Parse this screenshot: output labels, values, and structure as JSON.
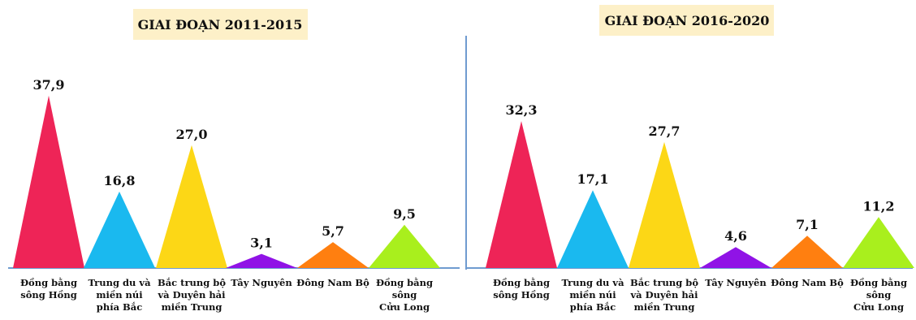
{
  "chart_data": [
    {
      "type": "bar",
      "title": "GIAI ĐOẠN 2011-2015",
      "categories": [
        [
          "Đồng bằng",
          "sông Hồng"
        ],
        [
          "Trung du và",
          "miền núi",
          "phía Bắc"
        ],
        [
          "Bắc trung bộ",
          "và Duyên hải",
          "miền Trung"
        ],
        [
          "Tây Nguyên"
        ],
        [
          "Đông Nam Bộ"
        ],
        [
          "Đồng bằng",
          "sông",
          "Cửu Long"
        ]
      ],
      "values": [
        37.9,
        16.8,
        27.0,
        3.1,
        5.7,
        9.5
      ],
      "value_labels": [
        "37,9",
        "16,8",
        "27,0",
        "3,1",
        "5,7",
        "9,5"
      ],
      "colors": [
        "#ee2457",
        "#1ab9ef",
        "#fcd716",
        "#9013e6",
        "#ff7f10",
        "#a9ef1d"
      ]
    },
    {
      "type": "bar",
      "title": "GIAI ĐOẠN 2016-2020",
      "categories": [
        [
          "Đồng bằng",
          "sông Hồng"
        ],
        [
          "Trung du và",
          "miền núi",
          "phía Bắc"
        ],
        [
          "Bắc trung bộ",
          "và Duyên hải",
          "miền Trung"
        ],
        [
          "Tây Nguyên"
        ],
        [
          "Đông Nam Bộ"
        ],
        [
          "Đồng bằng",
          "sông",
          "Cửu Long"
        ]
      ],
      "values": [
        32.3,
        17.1,
        27.7,
        4.6,
        7.1,
        11.2
      ],
      "value_labels": [
        "32,3",
        "17,1",
        "27,7",
        "4,6",
        "7,1",
        "11,2"
      ],
      "colors": [
        "#ee2457",
        "#1ab9ef",
        "#fcd716",
        "#9013e6",
        "#ff7f10",
        "#a9ef1d"
      ]
    }
  ],
  "style": {
    "title_bg": "#fdf0c8",
    "axis_color": "#6f9bd0",
    "divider_color": "#6f9bd0"
  }
}
